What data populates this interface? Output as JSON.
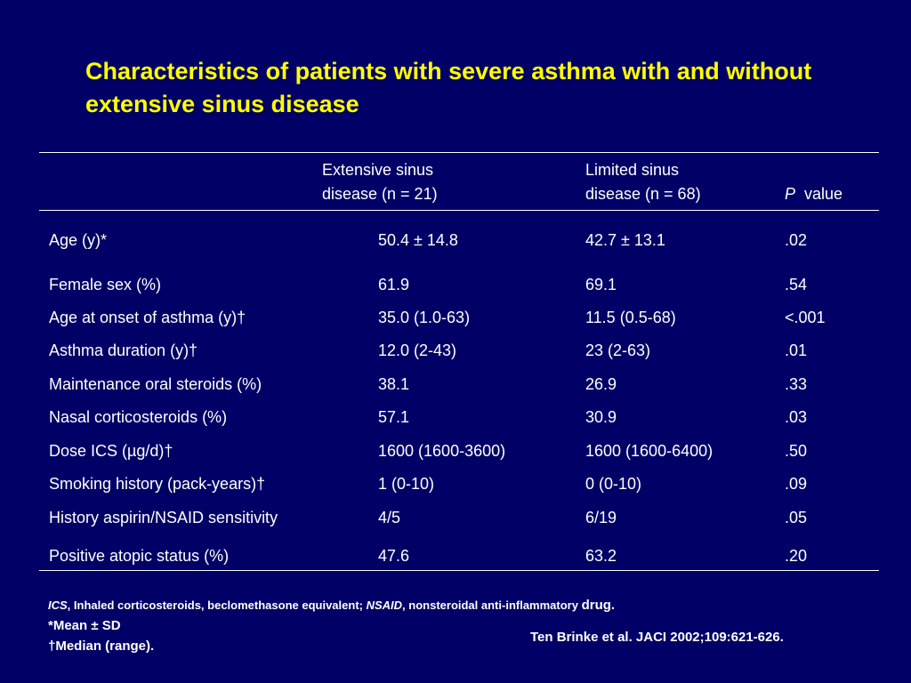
{
  "title": "Characteristics of patients with severe asthma with and without extensive sinus disease",
  "table": {
    "headers": {
      "col1_line1": "Extensive sinus",
      "col1_line2": "disease (n = 21)",
      "col2_line1": "Limited sinus",
      "col2_line2": "disease (n = 68)",
      "col3_italic": "P",
      "col3_rest": "value"
    },
    "rows": [
      {
        "label": "Age (y)*",
        "extensive": "50.4 ± 14.8",
        "limited": "42.7 ± 13.1",
        "p": ".02"
      },
      {
        "label": "Female sex (%)",
        "extensive": "61.9",
        "limited": "69.1",
        "p": ".54"
      },
      {
        "label": "Age at onset of asthma (y)†",
        "extensive": "35.0 (1.0-63)",
        "limited": "11.5 (0.5-68)",
        "p": "<.001"
      },
      {
        "label": "Asthma duration (y)†",
        "extensive": "12.0 (2-43)",
        "limited": "23 (2-63)",
        "p": ".01"
      },
      {
        "label": "Maintenance oral steroids (%)",
        "extensive": "38.1",
        "limited": "26.9",
        "p": ".33"
      },
      {
        "label": "Nasal corticosteroids (%)",
        "extensive": "57.1",
        "limited": "30.9",
        "p": ".03"
      },
      {
        "label": "Dose ICS (µg/d)†",
        "extensive": "1600 (1600-3600)",
        "limited": "1600 (1600-6400)",
        "p": ".50"
      },
      {
        "label": "Smoking history (pack-years)†",
        "extensive": "1 (0-10)",
        "limited": "0 (0-10)",
        "p": ".09"
      },
      {
        "label": "History aspirin/NSAID sensitivity",
        "extensive": "4/5",
        "limited": "6/19",
        "p": ".05"
      },
      {
        "label": "Positive atopic status (%)",
        "extensive": "47.6",
        "limited": "63.2",
        "p": ".20"
      }
    ]
  },
  "footnotes": {
    "ics_abbr": "ICS",
    "ics_text": ", Inhaled corticosteroids, beclomethasone equivalent; ",
    "nsaid_abbr": "NSAID",
    "nsaid_text": ", nonsteroidal anti-inflammatory ",
    "drug_word": "drug.",
    "mean_note": "*Mean ± SD",
    "median_note": "†Median (range)."
  },
  "citation": "Ten Brinke et al. JACI 2002;109:621-626.",
  "colors": {
    "background": "#000066",
    "title": "#ffff00",
    "text": "#ffffff"
  }
}
